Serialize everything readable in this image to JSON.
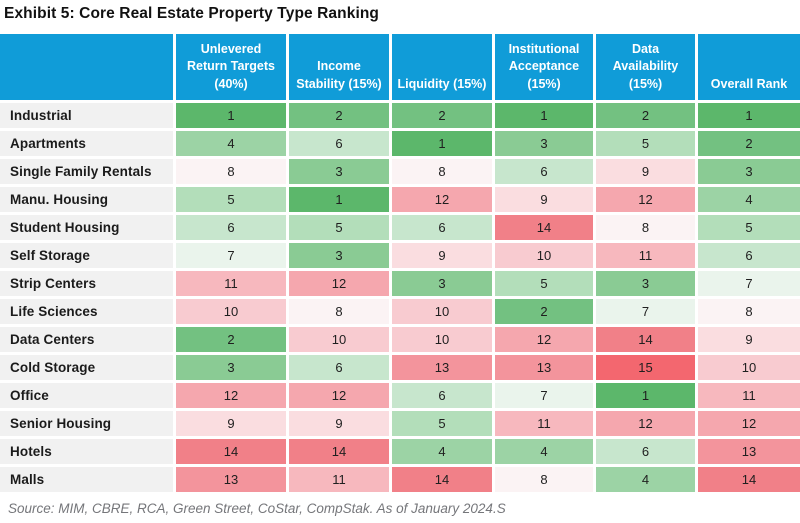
{
  "title": "Exhibit 5: Core Real Estate Property Type Ranking",
  "source": "Source: MIM, CBRE, RCA, Green Street, CoStar, CompStak. As of January 2024.S",
  "colors": {
    "header_bg": "#109CD8",
    "header_text": "#FFFFFF",
    "row_label_bg": "#F1F1F1",
    "title_text": "#111111",
    "source_text": "#75767A",
    "cell_text": "#1F1F1F",
    "rank_scale": [
      "#5CB76B",
      "#73C181",
      "#8ACB94",
      "#9CD3A5",
      "#B3DEBA",
      "#C7E6CD",
      "#EAF4EC",
      "#FBF3F4",
      "#FADDE0",
      "#F8CBD0",
      "#F7B8BE",
      "#F5A7AE",
      "#F3949C",
      "#F18088",
      "#F3676F"
    ]
  },
  "chart_data": {
    "type": "heatmap",
    "title": "Exhibit 5: Core Real Estate Property Type Ranking",
    "columns": [
      "Unlevered Return Targets (40%)",
      "Income Stability (15%)",
      "Liquidity (15%)",
      "Institutional Acceptance (15%)",
      "Data Availability (15%)",
      "Overall Rank"
    ],
    "rows": [
      "Industrial",
      "Apartments",
      "Single Family Rentals",
      "Manu. Housing",
      "Student Housing",
      "Self Storage",
      "Strip Centers",
      "Life Sciences",
      "Data Centers",
      "Cold Storage",
      "Office",
      "Senior Housing",
      "Hotels",
      "Malls"
    ],
    "values": [
      [
        1,
        2,
        2,
        1,
        2,
        1
      ],
      [
        4,
        6,
        1,
        3,
        5,
        2
      ],
      [
        8,
        3,
        8,
        6,
        9,
        3
      ],
      [
        5,
        1,
        12,
        9,
        12,
        4
      ],
      [
        6,
        5,
        6,
        14,
        8,
        5
      ],
      [
        7,
        3,
        9,
        10,
        11,
        6
      ],
      [
        11,
        12,
        3,
        5,
        3,
        7
      ],
      [
        10,
        8,
        10,
        2,
        7,
        8
      ],
      [
        2,
        10,
        10,
        12,
        14,
        9
      ],
      [
        3,
        6,
        13,
        13,
        15,
        10
      ],
      [
        12,
        12,
        6,
        7,
        1,
        11
      ],
      [
        9,
        9,
        5,
        11,
        12,
        12
      ],
      [
        14,
        14,
        4,
        4,
        6,
        13
      ],
      [
        13,
        11,
        14,
        8,
        4,
        14
      ]
    ],
    "scale": {
      "min": 1,
      "max": 15,
      "low_color_meaning": "green = best rank",
      "high_color_meaning": "red = worst rank",
      "midpoint": "white near rank 7-8"
    },
    "legend_position": "none",
    "grid": "white separators between cells"
  }
}
